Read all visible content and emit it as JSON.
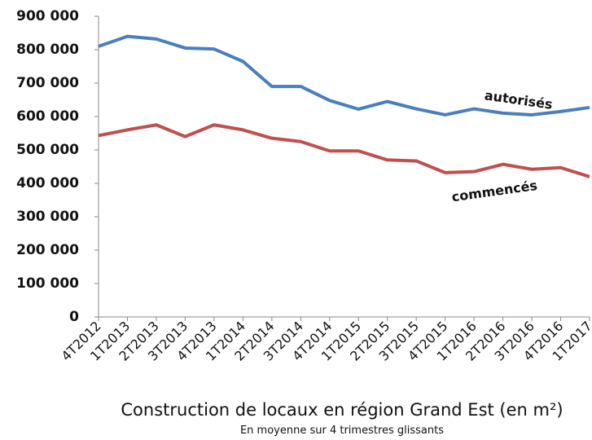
{
  "chart_data": {
    "type": "line",
    "title": "Construction de locaux en région Grand Est (en m²)",
    "subtitle": "En moyenne sur 4 trimestres glissants",
    "categories": [
      "4T2012",
      "1T2013",
      "2T2013",
      "3T2013",
      "4T2013",
      "1T2014",
      "2T2014",
      "3T2014",
      "4T2014",
      "1T2015",
      "2T2015",
      "3T2015",
      "4T2015",
      "1T2016",
      "2T2016",
      "3T2016",
      "4T2016",
      "1T2017"
    ],
    "series": [
      {
        "name": "autorisés",
        "color": "#4a7ebf",
        "values": [
          810000,
          840000,
          832000,
          805000,
          802000,
          765000,
          690000,
          690000,
          648000,
          622000,
          645000,
          623000,
          605000,
          623000,
          610000,
          605000,
          615000,
          627000
        ]
      },
      {
        "name": "commencés",
        "color": "#c0504d",
        "values": [
          543000,
          560000,
          575000,
          540000,
          575000,
          560000,
          535000,
          525000,
          497000,
          497000,
          470000,
          467000,
          432000,
          435000,
          457000,
          442000,
          447000,
          420000
        ]
      }
    ],
    "ylim": [
      0,
      900000
    ],
    "yticks": [
      {
        "value": 0,
        "label": "0"
      },
      {
        "value": 100000,
        "label": "100 000"
      },
      {
        "value": 200000,
        "label": "200 000"
      },
      {
        "value": 300000,
        "label": "300 000"
      },
      {
        "value": 400000,
        "label": "400 000"
      },
      {
        "value": 500000,
        "label": "500 000"
      },
      {
        "value": 600000,
        "label": "600 000"
      },
      {
        "value": 700000,
        "label": "700 000"
      },
      {
        "value": 800000,
        "label": "800 000"
      },
      {
        "value": 900000,
        "label": "900 000"
      }
    ],
    "grid": false
  }
}
